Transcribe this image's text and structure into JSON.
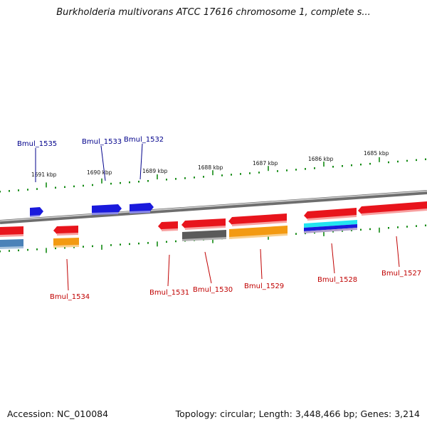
{
  "title": "Burkholderia multivorans ATCC 17616 chromosome 1, complete s...",
  "footer": {
    "accession": "Accession: NC_010084",
    "summary": "Topology: circular; Length: 3,448,466 bp; Genes: 3,214"
  },
  "ruler_labels": [
    "1691 kbp",
    "1690 kbp",
    "1689 kbp",
    "1688 kbp",
    "1687 kbp",
    "1686 kbp",
    "1685 kbp"
  ],
  "colors": {
    "forward_gene": "#1a1adc",
    "reverse_gene": "#e8141c",
    "orange_feature": "#f39a12",
    "gray_feature": "#5a5a5a",
    "steelblue_feature": "#4a82b8",
    "cyan_feature": "#22e4f0",
    "forward_label": "#00008b",
    "reverse_label": "#c00000",
    "tick": "#138a13"
  },
  "forward_genes": [
    {
      "label": "Bmul_1535"
    },
    {
      "label": "Bmul_1533"
    },
    {
      "label": "Bmul_1532"
    }
  ],
  "reverse_genes": [
    {
      "label": "Bmul_1534"
    },
    {
      "label": "Bmul_1531"
    },
    {
      "label": "Bmul_1530"
    },
    {
      "label": "Bmul_1529"
    },
    {
      "label": "Bmul_1528"
    },
    {
      "label": "Bmul_1527"
    }
  ]
}
